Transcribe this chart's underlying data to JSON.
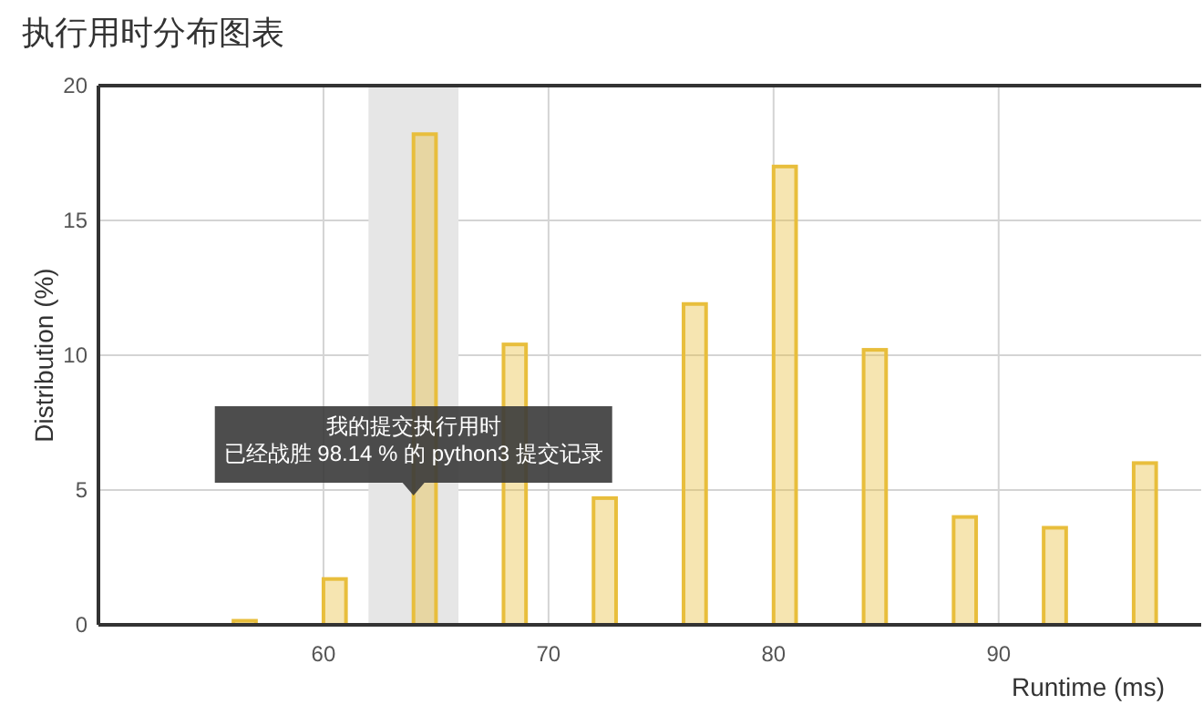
{
  "chart_data": {
    "type": "bar",
    "title": "执行用时分布图表",
    "xlabel": "Runtime (ms)",
    "ylabel": "Distribution (%)",
    "x": [
      56.5,
      60.5,
      64.5,
      68.5,
      72.5,
      76.5,
      80.5,
      84.5,
      88.5,
      92.5,
      96.5
    ],
    "values": [
      0.15,
      1.7,
      18.2,
      10.4,
      4.7,
      11.9,
      17.0,
      10.2,
      4.0,
      3.6,
      6.0
    ],
    "color": "#e8be3c",
    "xlim": [
      50,
      99
    ],
    "xticks": [
      60,
      70,
      80,
      90
    ],
    "ylim": [
      0,
      20
    ],
    "yticks": [
      0,
      5,
      10,
      15,
      20
    ],
    "grid": true,
    "bands": [
      {
        "axis": "x",
        "from": 62,
        "to": 66,
        "color": "#e6e6e6"
      }
    ],
    "annotations": [
      "我的提交执行用时",
      "已经战胜 98.14 % 的 python3 提交记录"
    ]
  }
}
